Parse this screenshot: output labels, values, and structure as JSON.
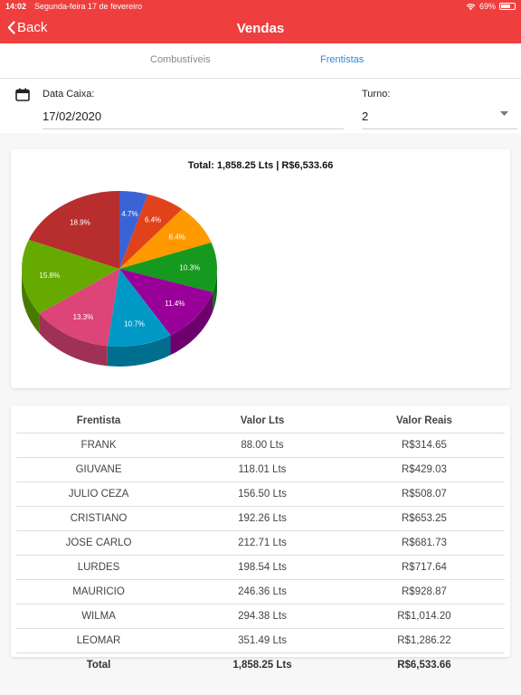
{
  "status_bar": {
    "time": "14:02",
    "date": "Segunda-feira 17 de fevereiro",
    "battery": "69%",
    "battery_level": 0.69
  },
  "nav": {
    "back_label": "Back",
    "title": "Vendas"
  },
  "tabs": [
    {
      "label": "Combustíveis",
      "active": false
    },
    {
      "label": "Frentistas",
      "active": true
    }
  ],
  "form": {
    "data_caixa_label": "Data Caixa:",
    "data_caixa_value": "17/02/2020",
    "turno_label": "Turno:",
    "turno_value": "2"
  },
  "chart_data": {
    "type": "pie",
    "title": "Total: 1,858.25 Lts | R$6,533.66",
    "slices": [
      {
        "label": "4.7%",
        "value": 4.7,
        "color": "#3a63d6"
      },
      {
        "label": "6.4%",
        "value": 6.4,
        "color": "#e0431c"
      },
      {
        "label": "8.4%",
        "value": 8.4,
        "color": "#ff9900"
      },
      {
        "label": "10.3%",
        "value": 10.3,
        "color": "#16991f"
      },
      {
        "label": "11.4%",
        "value": 11.4,
        "color": "#990099"
      },
      {
        "label": "10.7%",
        "value": 10.7,
        "color": "#0099c6"
      },
      {
        "label": "13.3%",
        "value": 13.3,
        "color": "#dd4477"
      },
      {
        "label": "15.8%",
        "value": 15.8,
        "color": "#66aa00"
      },
      {
        "label": "18.9%",
        "value": 18.9,
        "color": "#b82e2e"
      }
    ]
  },
  "table": {
    "headers": [
      "Frentista",
      "Valor Lts",
      "Valor Reais"
    ],
    "rows": [
      [
        "FRANK",
        "88.00 Lts",
        "R$314.65"
      ],
      [
        "GIUVANE",
        "118.01 Lts",
        "R$429.03"
      ],
      [
        "JULIO CEZA",
        "156.50 Lts",
        "R$508.07"
      ],
      [
        "CRISTIANO",
        "192.26 Lts",
        "R$653.25"
      ],
      [
        "JOSE CARLO",
        "212.71 Lts",
        "R$681.73"
      ],
      [
        "LURDES",
        "198.54 Lts",
        "R$717.64"
      ],
      [
        "MAURICIO",
        "246.36 Lts",
        "R$928.87"
      ],
      [
        "WILMA",
        "294.38 Lts",
        "R$1,014.20"
      ],
      [
        "LEOMAR",
        "351.49 Lts",
        "R$1,286.22"
      ]
    ],
    "total": [
      "Total",
      "1,858.25 Lts",
      "R$6,533.66"
    ]
  }
}
